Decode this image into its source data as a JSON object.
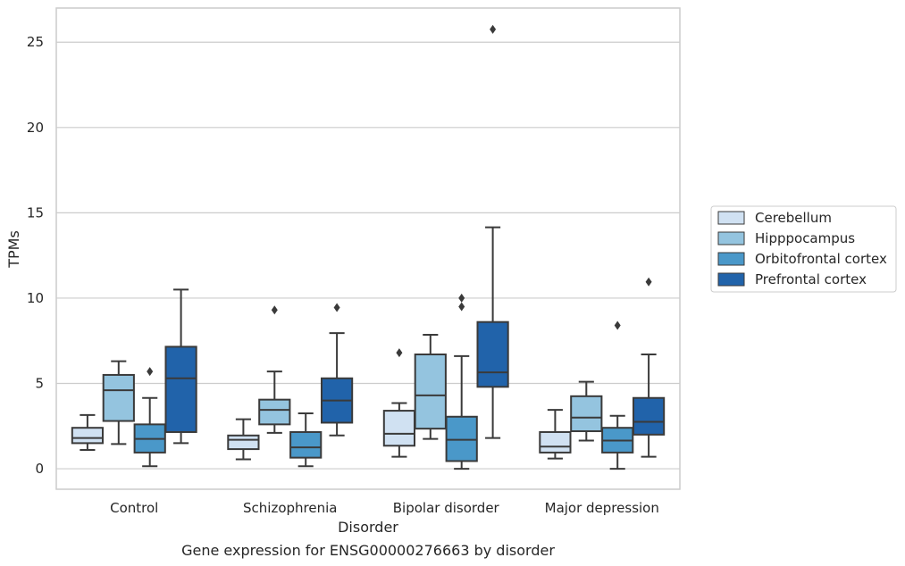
{
  "chart_data": {
    "type": "box",
    "caption": "Gene expression for ENSG00000276663 by disorder",
    "xlabel": "Disorder",
    "ylabel": "TPMs",
    "ylim": [
      -1.2,
      27
    ],
    "yticks": [
      0,
      5,
      10,
      15,
      20,
      25
    ],
    "grid": "horizontal",
    "legend_position": "right",
    "categories": [
      "Control",
      "Schizophrenia",
      "Bipolar disorder",
      "Major depression"
    ],
    "series": [
      {
        "name": "Cerebellum",
        "color": "#d0e1f2",
        "boxes": [
          {
            "whisker_low": 1.1,
            "q1": 1.5,
            "median": 1.8,
            "q3": 2.4,
            "whisker_high": 3.15,
            "outliers": []
          },
          {
            "whisker_low": 0.55,
            "q1": 1.15,
            "median": 1.7,
            "q3": 1.95,
            "whisker_high": 2.9,
            "outliers": []
          },
          {
            "whisker_low": 0.7,
            "q1": 1.35,
            "median": 2.05,
            "q3": 3.4,
            "whisker_high": 3.85,
            "outliers": [
              6.8
            ]
          },
          {
            "whisker_low": 0.6,
            "q1": 0.95,
            "median": 1.3,
            "q3": 2.15,
            "whisker_high": 3.45,
            "outliers": []
          }
        ]
      },
      {
        "name": "Hipppocampus",
        "color": "#94c4df",
        "boxes": [
          {
            "whisker_low": 1.45,
            "q1": 2.8,
            "median": 4.6,
            "q3": 5.5,
            "whisker_high": 6.3,
            "outliers": []
          },
          {
            "whisker_low": 2.1,
            "q1": 2.6,
            "median": 3.45,
            "q3": 4.05,
            "whisker_high": 5.7,
            "outliers": [
              9.3
            ]
          },
          {
            "whisker_low": 1.75,
            "q1": 2.35,
            "median": 4.3,
            "q3": 6.7,
            "whisker_high": 7.85,
            "outliers": []
          },
          {
            "whisker_low": 1.65,
            "q1": 2.2,
            "median": 3.0,
            "q3": 4.25,
            "whisker_high": 5.1,
            "outliers": []
          }
        ]
      },
      {
        "name": "Orbitofrontal cortex",
        "color": "#4a98c9",
        "boxes": [
          {
            "whisker_low": 0.15,
            "q1": 0.95,
            "median": 1.75,
            "q3": 2.6,
            "whisker_high": 4.15,
            "outliers": [
              5.7
            ]
          },
          {
            "whisker_low": 0.15,
            "q1": 0.65,
            "median": 1.25,
            "q3": 2.15,
            "whisker_high": 3.25,
            "outliers": []
          },
          {
            "whisker_low": 0.0,
            "q1": 0.45,
            "median": 1.7,
            "q3": 3.05,
            "whisker_high": 6.6,
            "outliers": [
              9.5,
              10.0
            ]
          },
          {
            "whisker_low": 0.0,
            "q1": 0.95,
            "median": 1.65,
            "q3": 2.4,
            "whisker_high": 3.1,
            "outliers": [
              8.4
            ]
          }
        ]
      },
      {
        "name": "Prefrontal cortex",
        "color": "#2163aa",
        "boxes": [
          {
            "whisker_low": 1.5,
            "q1": 2.15,
            "median": 5.3,
            "q3": 7.15,
            "whisker_high": 10.5,
            "outliers": []
          },
          {
            "whisker_low": 1.95,
            "q1": 2.7,
            "median": 4.0,
            "q3": 5.3,
            "whisker_high": 7.95,
            "outliers": [
              9.45
            ]
          },
          {
            "whisker_low": 1.8,
            "q1": 4.8,
            "median": 5.65,
            "q3": 8.6,
            "whisker_high": 14.15,
            "outliers": [
              25.75
            ]
          },
          {
            "whisker_low": 0.7,
            "q1": 2.0,
            "median": 2.75,
            "q3": 4.15,
            "whisker_high": 6.7,
            "outliers": [
              10.95
            ]
          }
        ]
      }
    ]
  },
  "colors": {
    "grid": "#cccccc",
    "frame": "#cccccc",
    "box_edge": "#3a3a3a",
    "text": "#262626"
  }
}
